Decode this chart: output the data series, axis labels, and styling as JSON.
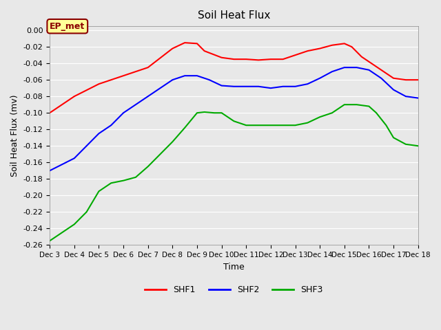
{
  "title": "Soil Heat Flux",
  "xlabel": "Time",
  "ylabel": "Soil Heat Flux (mv)",
  "ylim": [
    -0.26,
    0.005
  ],
  "yticks": [
    0.0,
    -0.02,
    -0.04,
    -0.06,
    -0.08,
    -0.1,
    -0.12,
    -0.14,
    -0.16,
    -0.18,
    -0.2,
    -0.22,
    -0.24,
    -0.26
  ],
  "xtick_labels": [
    "Dec 3",
    "Dec 4",
    "Dec 5",
    "Dec 6",
    "Dec 7",
    "Dec 8",
    "Dec 9",
    "Dec 10",
    "Dec 11",
    "Dec 12",
    "Dec 13",
    "Dec 14",
    "Dec 15",
    "Dec 16",
    "Dec 17",
    "Dec 18"
  ],
  "annotation_text": "EP_met",
  "annotation_color": "#8B0000",
  "annotation_bg": "#FFFF99",
  "background_color": "#E8E8E8",
  "plot_bg": "#E8E8E8",
  "grid_color": "#ffffff",
  "shf1_color": "#FF0000",
  "shf2_color": "#0000FF",
  "shf3_color": "#00AA00",
  "legend_entries": [
    "SHF1",
    "SHF2",
    "SHF3"
  ],
  "shf1_x": [
    3,
    4,
    5,
    6,
    7,
    8,
    8.5,
    9,
    9.3,
    10,
    10.5,
    11,
    11.5,
    12,
    12.5,
    13,
    13.5,
    14,
    14.5,
    15,
    15.3,
    15.7,
    16,
    16.5,
    17,
    17.5,
    18
  ],
  "shf1_y": [
    -0.1,
    -0.08,
    -0.065,
    -0.055,
    -0.045,
    -0.022,
    -0.015,
    -0.016,
    -0.025,
    -0.033,
    -0.035,
    -0.035,
    -0.036,
    -0.035,
    -0.035,
    -0.03,
    -0.025,
    -0.022,
    -0.018,
    -0.016,
    -0.02,
    -0.032,
    -0.038,
    -0.048,
    -0.058,
    -0.06,
    -0.06
  ],
  "shf2_x": [
    3,
    4,
    4.5,
    5,
    5.5,
    6,
    6.5,
    7,
    7.5,
    8,
    8.5,
    9,
    9.5,
    10,
    10.5,
    11,
    11.5,
    12,
    12.5,
    13,
    13.5,
    14,
    14.5,
    15,
    15.5,
    16,
    16.5,
    17,
    17.5,
    18
  ],
  "shf2_y": [
    -0.17,
    -0.155,
    -0.14,
    -0.125,
    -0.115,
    -0.1,
    -0.09,
    -0.08,
    -0.07,
    -0.06,
    -0.055,
    -0.055,
    -0.06,
    -0.067,
    -0.068,
    -0.068,
    -0.068,
    -0.07,
    -0.068,
    -0.068,
    -0.065,
    -0.058,
    -0.05,
    -0.045,
    -0.045,
    -0.048,
    -0.058,
    -0.072,
    -0.08,
    -0.082
  ],
  "shf3_x": [
    3,
    3.5,
    4,
    4.5,
    5,
    5.5,
    6,
    6.5,
    7,
    7.5,
    8,
    8.5,
    9,
    9.3,
    9.7,
    10,
    10.5,
    11,
    11.5,
    12,
    12.5,
    13,
    13.5,
    14,
    14.5,
    15,
    15.5,
    16,
    16.3,
    16.7,
    17,
    17.5,
    18
  ],
  "shf3_y": [
    -0.255,
    -0.245,
    -0.235,
    -0.22,
    -0.195,
    -0.185,
    -0.182,
    -0.178,
    -0.165,
    -0.15,
    -0.135,
    -0.118,
    -0.1,
    -0.099,
    -0.1,
    -0.1,
    -0.11,
    -0.115,
    -0.115,
    -0.115,
    -0.115,
    -0.115,
    -0.112,
    -0.105,
    -0.1,
    -0.09,
    -0.09,
    -0.092,
    -0.1,
    -0.115,
    -0.13,
    -0.138,
    -0.14
  ]
}
